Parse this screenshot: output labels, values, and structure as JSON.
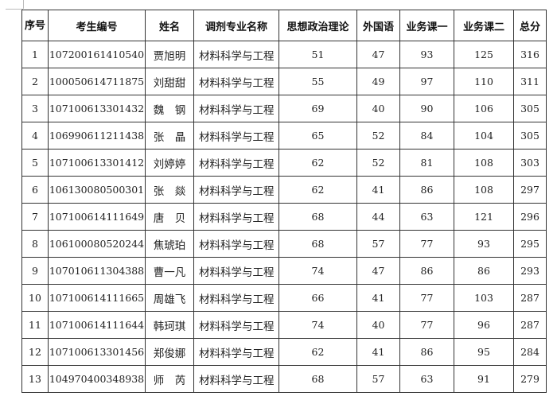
{
  "headers": [
    "序号",
    "考生编号",
    "姓名",
    "调剂专业名称",
    "思想政治理论",
    "外国语",
    "业务课一",
    "业务课二",
    "总分"
  ],
  "rows": [
    [
      "1",
      "107200161410540",
      "贾旭明",
      "材料科学与工程",
      "51",
      "47",
      "93",
      "125",
      "316"
    ],
    [
      "2",
      "100050614711875",
      "刘甜甜",
      "材料科学与工程",
      "55",
      "49",
      "97",
      "110",
      "311"
    ],
    [
      "3",
      "107100613301432",
      "魏　钢",
      "材料科学与工程",
      "69",
      "40",
      "90",
      "106",
      "305"
    ],
    [
      "4",
      "106990611211438",
      "张　晶",
      "材料科学与工程",
      "65",
      "52",
      "84",
      "104",
      "305"
    ],
    [
      "5",
      "107100613301412",
      "刘婷婷",
      "材料科学与工程",
      "62",
      "52",
      "81",
      "108",
      "303"
    ],
    [
      "6",
      "106130080500301",
      "张　燚",
      "材料科学与工程",
      "62",
      "41",
      "86",
      "108",
      "297"
    ],
    [
      "7",
      "107100614111649",
      "唐　贝",
      "材料科学与工程",
      "68",
      "44",
      "63",
      "121",
      "296"
    ],
    [
      "8",
      "106100080520244",
      "焦琥珀",
      "材料科学与工程",
      "68",
      "57",
      "77",
      "93",
      "295"
    ],
    [
      "9",
      "107010611304388",
      "曹一凡",
      "材料科学与工程",
      "74",
      "47",
      "86",
      "86",
      "293"
    ],
    [
      "10",
      "107100614111665",
      "周雄飞",
      "材料科学与工程",
      "66",
      "41",
      "77",
      "103",
      "287"
    ],
    [
      "11",
      "107100614111644",
      "韩珂琪",
      "材料科学与工程",
      "74",
      "40",
      "77",
      "96",
      "287"
    ],
    [
      "12",
      "107100613301456",
      "郑俊娜",
      "材料科学与工程",
      "62",
      "41",
      "86",
      "95",
      "284"
    ],
    [
      "13",
      "104970400348938",
      "师　芮",
      "材料科学与工程",
      "68",
      "57",
      "63",
      "91",
      "279"
    ]
  ]
}
